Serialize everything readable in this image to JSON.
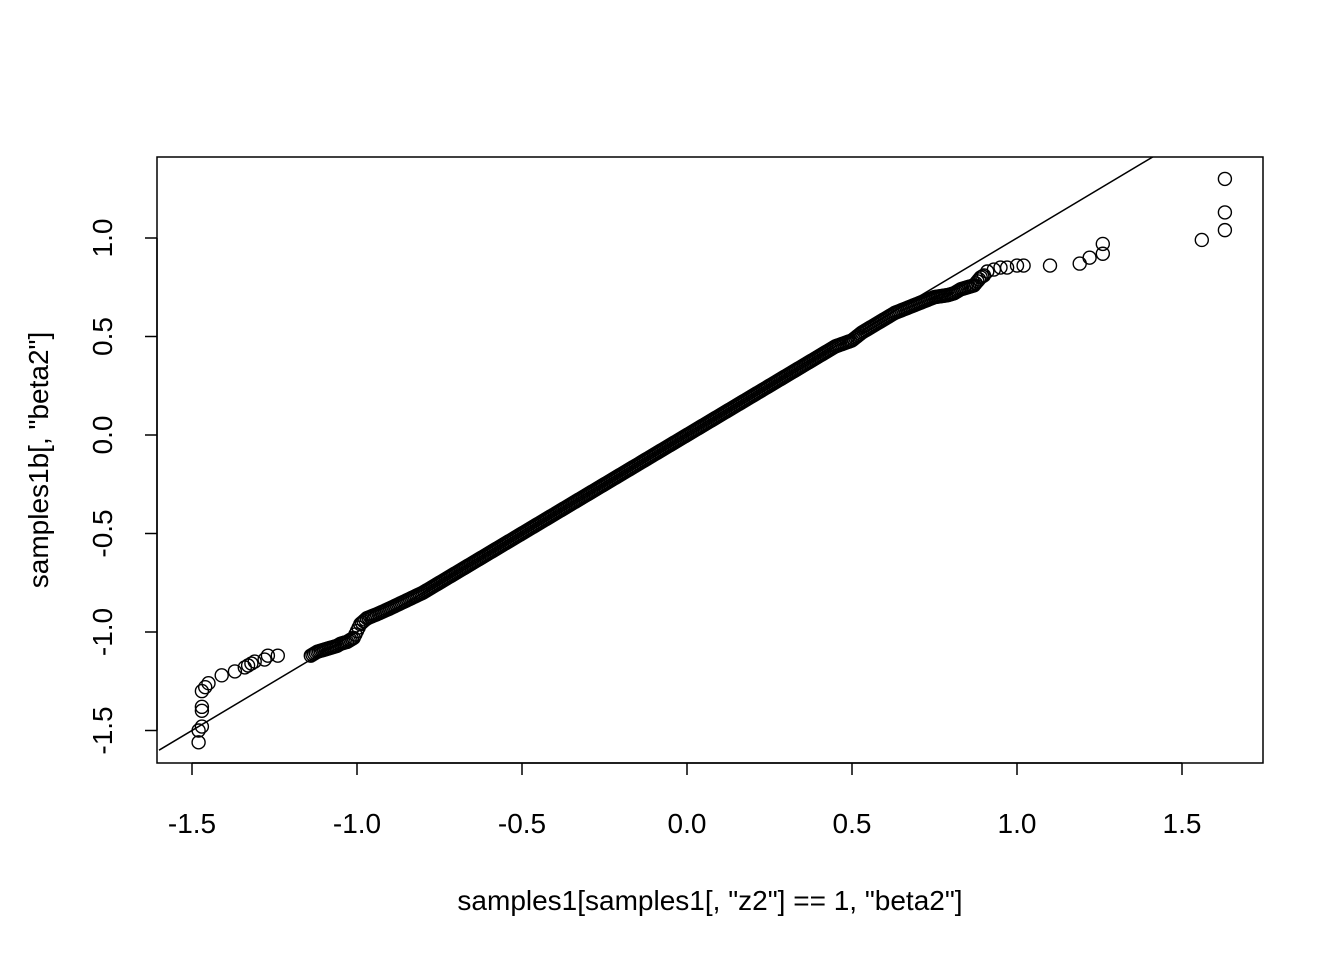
{
  "chart_data": {
    "type": "scatter",
    "title": "",
    "xlabel": "samples1[samples1[, \"z2\"] == 1, \"beta2\"]",
    "ylabel": "samples1b[, \"beta2\"]",
    "xlim": [
      -1.6,
      1.75
    ],
    "ylim": [
      -1.67,
      1.4
    ],
    "xticks": [
      -1.5,
      -1.0,
      -0.5,
      0.0,
      0.5,
      1.0,
      1.5
    ],
    "xtick_labels": [
      "-1.5",
      "-1.0",
      "-0.5",
      "0.0",
      "0.5",
      "1.0",
      "1.5"
    ],
    "yticks": [
      -1.5,
      -1.0,
      -0.5,
      0.0,
      0.5,
      1.0
    ],
    "ytick_labels": [
      "-1.5",
      "-1.0",
      "-0.5",
      "0.0",
      "0.5",
      "1.0"
    ],
    "grid": false,
    "marker": "open-circle",
    "reference_line": {
      "type": "qqline",
      "x": [
        -1.6,
        1.42
      ],
      "y": [
        -1.6,
        1.42
      ]
    },
    "series": [
      {
        "x": [
          -1.48,
          -1.48,
          -1.47,
          -1.47,
          -1.47,
          -1.47,
          -1.46,
          -1.45,
          -1.41,
          -1.37,
          -1.34,
          -1.33,
          -1.32,
          -1.31,
          -1.28,
          -1.27,
          -1.24,
          -1.14,
          -1.13,
          -1.12,
          -1.1,
          -1.08,
          -1.06,
          -1.05,
          -1.03,
          -1.01,
          -0.99,
          -0.97,
          -0.94,
          -0.9,
          -0.85,
          -0.8,
          -0.75,
          -0.7,
          -0.65,
          -0.6,
          -0.55,
          -0.5,
          -0.45,
          -0.4,
          -0.35,
          -0.3,
          -0.25,
          -0.2,
          -0.15,
          -0.1,
          -0.05,
          0.0,
          0.05,
          0.1,
          0.15,
          0.2,
          0.25,
          0.3,
          0.35,
          0.4,
          0.45,
          0.5,
          0.53,
          0.56,
          0.6,
          0.63,
          0.66,
          0.69,
          0.72,
          0.75,
          0.79,
          0.81,
          0.83,
          0.85,
          0.87,
          0.88,
          0.89,
          0.9,
          0.91,
          0.93,
          0.95,
          0.97,
          1.0,
          1.02,
          1.1,
          1.19,
          1.22,
          1.26,
          1.26,
          1.56,
          1.63,
          1.63,
          1.63
        ],
        "y": [
          -1.56,
          -1.5,
          -1.48,
          -1.4,
          -1.38,
          -1.3,
          -1.28,
          -1.26,
          -1.22,
          -1.2,
          -1.18,
          -1.17,
          -1.16,
          -1.15,
          -1.14,
          -1.12,
          -1.12,
          -1.12,
          -1.11,
          -1.1,
          -1.09,
          -1.08,
          -1.07,
          -1.06,
          -1.05,
          -1.03,
          -0.96,
          -0.93,
          -0.91,
          -0.88,
          -0.84,
          -0.8,
          -0.75,
          -0.7,
          -0.65,
          -0.6,
          -0.55,
          -0.5,
          -0.45,
          -0.4,
          -0.35,
          -0.3,
          -0.25,
          -0.2,
          -0.15,
          -0.1,
          -0.05,
          0.0,
          0.05,
          0.1,
          0.15,
          0.2,
          0.25,
          0.3,
          0.35,
          0.4,
          0.45,
          0.48,
          0.52,
          0.55,
          0.59,
          0.62,
          0.64,
          0.66,
          0.68,
          0.7,
          0.71,
          0.72,
          0.74,
          0.75,
          0.76,
          0.78,
          0.8,
          0.81,
          0.83,
          0.84,
          0.85,
          0.85,
          0.86,
          0.86,
          0.86,
          0.87,
          0.9,
          0.92,
          0.97,
          0.99,
          1.04,
          1.13,
          1.3
        ]
      }
    ]
  }
}
